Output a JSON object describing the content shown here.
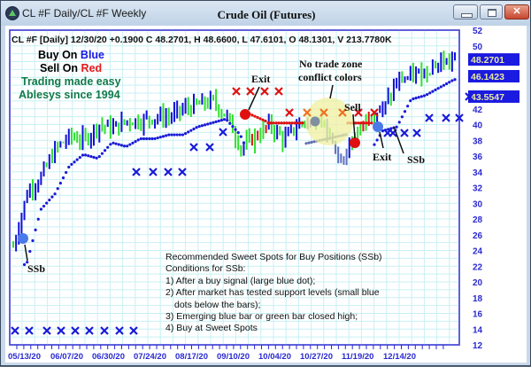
{
  "window": {
    "title": "CL #F Daily/CL #F Weekly",
    "chart_title": "Crude Oil (Futures)",
    "buttons": {
      "minimize": "—",
      "maximize": "□",
      "close": "✕"
    }
  },
  "header": {
    "text": "CL #F [Daily] 12/30/20  +0.1900 C 48.2701, H 48.6600, L 47.6101, O 48.1301, V 213.7780K"
  },
  "legend": {
    "buy_prefix": "Buy On ",
    "buy_word": "Blue",
    "sell_prefix": "Sell On ",
    "sell_word": "Red",
    "line3": "Trading made easy",
    "line4": "Ablesys since 1994",
    "colors": {
      "blue": "#1a1ae6",
      "red": "#e61a1a",
      "green_text": "#107a4a"
    }
  },
  "annotations": {
    "ssb_left": "SSb",
    "exit_1": "Exit",
    "no_trade_1": "No trade zone",
    "no_trade_2": "conflict colors",
    "sell": "Sell",
    "exit_2": "Exit",
    "ssb_right": "SSb"
  },
  "notes": {
    "lines": [
      "Recommended Sweet Spots for Buy Positions (SSb)",
      "Conditions for SSb:",
      "1) After a buy signal (large blue dot);",
      "2) After market has tested support levels (small blue",
      "    dots below the bars);",
      "3) Emerging blue bar or green bar closed high;",
      "4) Buy at Sweet Spots"
    ]
  },
  "price_tags": [
    {
      "value": "48.2701",
      "price": 48.2701
    },
    {
      "value": "46.1423",
      "price": 46.1423
    },
    {
      "value": "43.5547",
      "price": 43.5547
    }
  ],
  "chart_data": {
    "type": "candlestick",
    "title": "Crude Oil (Futures)",
    "symbol": "CL #F",
    "interval": "Daily",
    "ylim": [
      12,
      52
    ],
    "yticks": [
      52,
      50,
      48,
      46,
      44,
      42,
      40,
      38,
      36,
      34,
      32,
      30,
      28,
      26,
      24,
      22,
      20,
      18,
      16,
      14,
      12
    ],
    "ytick_labels_shown": [
      "52",
      "50",
      "42",
      "40",
      "38",
      "36",
      "34",
      "32",
      "30",
      "28",
      "26",
      "24",
      "22",
      "20",
      "18",
      "16",
      "14",
      "12"
    ],
    "xtick_labels": [
      "05/13/20",
      "06/07/20",
      "06/30/20",
      "07/24/20",
      "08/17/20",
      "09/10/20",
      "10/04/20",
      "10/27/20",
      "11/19/20",
      "12/14/20"
    ],
    "grid": true,
    "last_bar": {
      "date": "12/30/20",
      "change": 0.19,
      "close": 48.2701,
      "high": 48.66,
      "low": 47.6101,
      "open": 48.1301,
      "volume": "213.7780K"
    },
    "approx_close_path": [
      [
        "05/13/20",
        24.5
      ],
      [
        "05/20/20",
        31.5
      ],
      [
        "05/27/20",
        33.5
      ],
      [
        "06/03/20",
        37.0
      ],
      [
        "06/07/20",
        38.5
      ],
      [
        "06/15/20",
        38.0
      ],
      [
        "06/22/20",
        40.0
      ],
      [
        "06/30/20",
        39.5
      ],
      [
        "07/07/20",
        40.5
      ],
      [
        "07/14/20",
        40.5
      ],
      [
        "07/24/20",
        41.0
      ],
      [
        "08/03/20",
        41.0
      ],
      [
        "08/10/20",
        42.0
      ],
      [
        "08/17/20",
        42.5
      ],
      [
        "08/26/20",
        43.0
      ],
      [
        "09/03/20",
        41.0
      ],
      [
        "09/08/20",
        37.0
      ],
      [
        "09/15/20",
        38.5
      ],
      [
        "09/22/20",
        40.0
      ],
      [
        "10/04/20",
        38.0
      ],
      [
        "10/12/20",
        40.0
      ],
      [
        "10/20/20",
        41.0
      ],
      [
        "10/27/20",
        39.0
      ],
      [
        "10/30/20",
        35.5
      ],
      [
        "11/05/20",
        38.5
      ],
      [
        "11/12/20",
        41.5
      ],
      [
        "11/19/20",
        42.0
      ],
      [
        "11/26/20",
        45.5
      ],
      [
        "12/04/20",
        46.0
      ],
      [
        "12/14/20",
        47.0
      ],
      [
        "12/22/20",
        48.0
      ],
      [
        "12/30/20",
        48.27
      ]
    ],
    "series": [
      {
        "name": "Buy signal (large blue dot)",
        "points": [
          [
            "05/18/20",
            25.5
          ],
          [
            "11/05/20",
            39.5
          ]
        ]
      },
      {
        "name": "Sell signal (large red dot)",
        "points": [
          [
            "08/31/20",
            41.5
          ],
          [
            "10/29/20",
            37.5
          ]
        ]
      },
      {
        "name": "Conflict / no trade (gray dot)",
        "points": [
          [
            "10/12/20",
            40.0
          ]
        ]
      },
      {
        "name": "Exit markers (red X)",
        "price_level": 45.5
      },
      {
        "name": "Blue X markers",
        "price_levels": [
          14.0,
          35.0,
          38.0,
          41.0,
          43.5
        ]
      }
    ],
    "legend_position": "top-left"
  }
}
